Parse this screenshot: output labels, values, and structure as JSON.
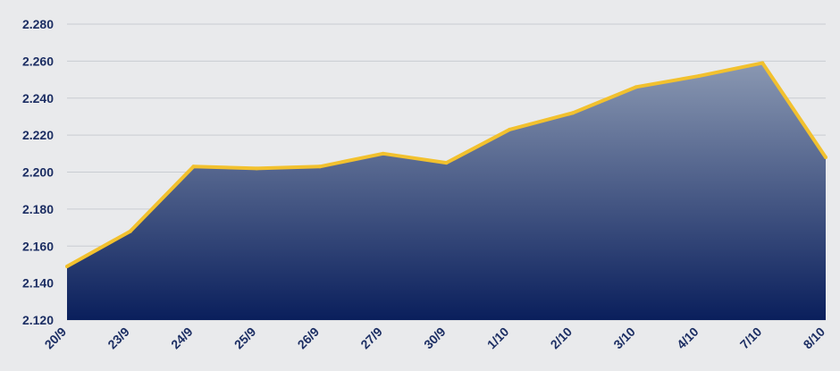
{
  "chart_data": {
    "type": "area",
    "title": "",
    "xlabel": "",
    "ylabel": "",
    "categories": [
      "20/9",
      "23/9",
      "24/9",
      "25/9",
      "26/9",
      "27/9",
      "30/9",
      "1/10",
      "2/10",
      "3/10",
      "4/10",
      "7/10",
      "8/10"
    ],
    "series": [
      {
        "values": [
          2.149,
          2.168,
          2.203,
          2.202,
          2.203,
          2.21,
          2.205,
          2.223,
          2.232,
          2.246,
          2.252,
          2.259,
          2.208
        ]
      }
    ],
    "yticks": [
      "2.120",
      "2.140",
      "2.160",
      "2.180",
      "2.200",
      "2.220",
      "2.240",
      "2.260",
      "2.280"
    ],
    "ylim": [
      2.12,
      2.28
    ],
    "grid": true,
    "legend": "none",
    "colors": {
      "line": "#f2c12e",
      "fill_top": "#8a98b2",
      "fill_bottom": "#0a1f5c",
      "tick_text": "#1c2e63",
      "background": "#e9eaec",
      "grid": "#c9ccd2"
    }
  }
}
